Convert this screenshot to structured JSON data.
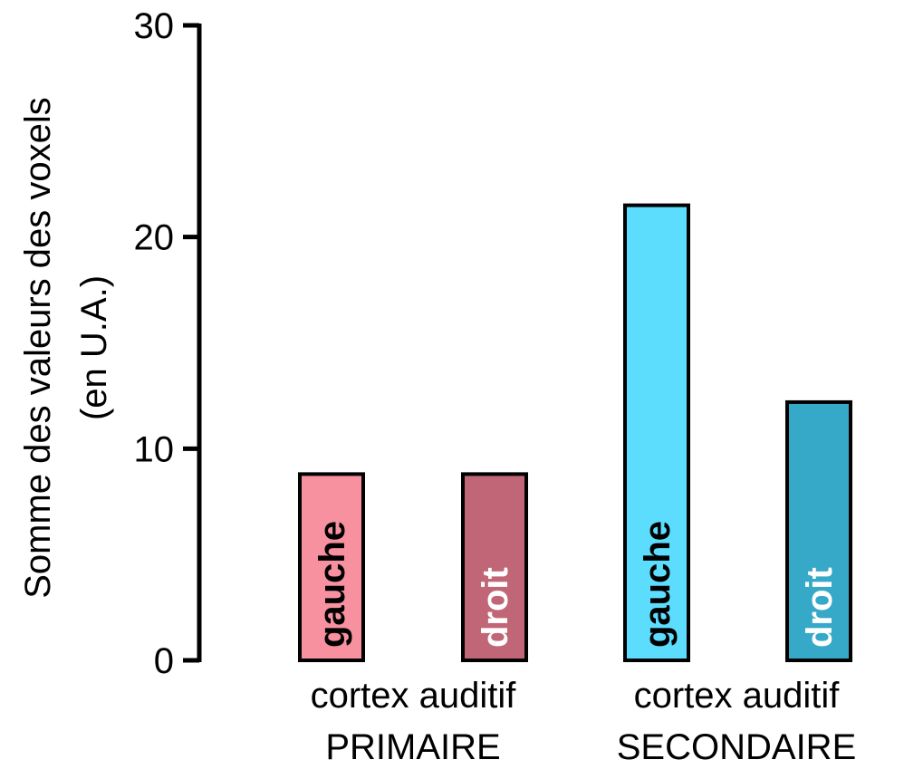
{
  "chart_data": {
    "type": "bar",
    "ylabel_line1": "Somme des valeurs des voxels",
    "ylabel_line2": "(en U.A.)",
    "ylim": [
      0,
      30
    ],
    "yticks": [
      0,
      10,
      20,
      30
    ],
    "grid": false,
    "groups": [
      {
        "line1": "cortex auditif",
        "line2": "PRIMAIRE"
      },
      {
        "line1": "cortex auditif",
        "line2": "SECONDAIRE"
      }
    ],
    "bars": [
      {
        "label": "gauche",
        "value": 8.8,
        "group": 0,
        "color": "#f7919f",
        "label_color": "#000000"
      },
      {
        "label": "droit",
        "value": 8.8,
        "group": 0,
        "color": "#c06676",
        "label_color": "#ffffff"
      },
      {
        "label": "gauche",
        "value": 21.5,
        "group": 1,
        "color": "#5cddfe",
        "label_color": "#000000"
      },
      {
        "label": "droit",
        "value": 12.2,
        "group": 1,
        "color": "#36a8c8",
        "label_color": "#ffffff"
      }
    ]
  }
}
